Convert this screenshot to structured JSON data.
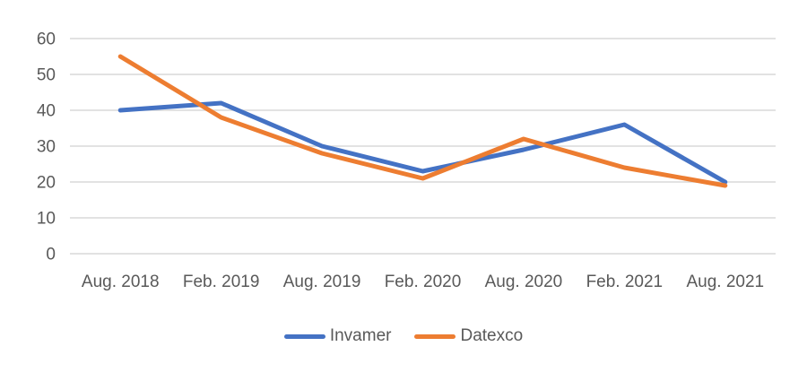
{
  "chart_data": {
    "type": "line",
    "title": "",
    "xlabel": "",
    "ylabel": "",
    "categories": [
      "Aug. 2018",
      "Feb. 2019",
      "Aug. 2019",
      "Feb. 2020",
      "Aug. 2020",
      "Feb. 2021",
      "Aug. 2021"
    ],
    "series": [
      {
        "name": "Invamer",
        "color": "#4472C4",
        "values": [
          40,
          42,
          30,
          23,
          29,
          36,
          20
        ]
      },
      {
        "name": "Datexco",
        "color": "#ED7D31",
        "values": [
          55,
          38,
          28,
          21,
          32,
          24,
          19
        ]
      }
    ],
    "ylim": [
      0,
      60
    ],
    "y_ticks": [
      0,
      10,
      20,
      30,
      40,
      50,
      60
    ],
    "grid": "horizontal-only",
    "legend_position": "bottom-center"
  },
  "styles": {
    "background": "#FFFFFF",
    "gridline_color": "#D9D9D9",
    "axis_text_color": "#595959"
  }
}
